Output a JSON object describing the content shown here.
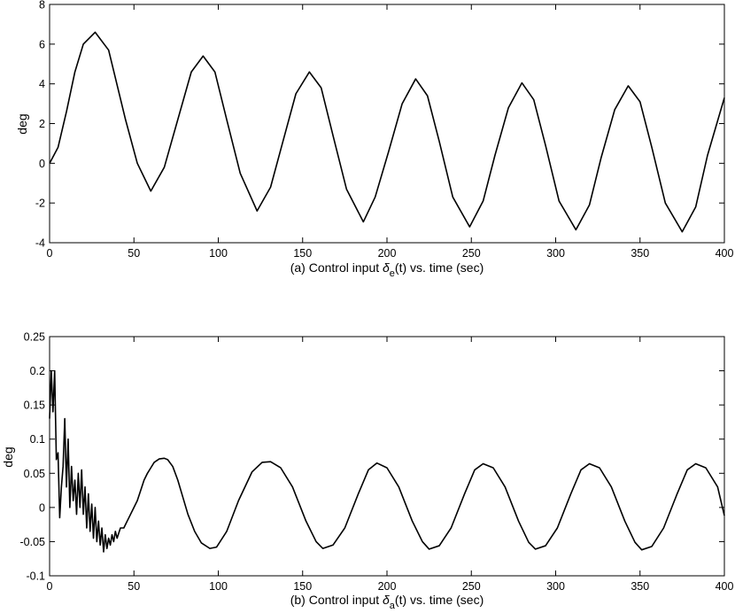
{
  "chart_data": [
    {
      "type": "line",
      "title": "",
      "xlabel": "(a) Control input δe(t) vs. time (sec)",
      "xlabel_parts": {
        "prefix": "(a) Control input ",
        "symbol": "δ",
        "subscript": "e",
        "suffix": "(t) vs. time (sec)"
      },
      "ylabel": "deg",
      "xlim": [
        0,
        400
      ],
      "ylim": [
        -4,
        8
      ],
      "x_ticks": [
        0,
        50,
        100,
        150,
        200,
        250,
        300,
        350,
        400
      ],
      "y_ticks": [
        -4,
        -2,
        0,
        2,
        4,
        6,
        8
      ],
      "grid": false,
      "series": [
        {
          "x": [
            0,
            5,
            10,
            15,
            20,
            27,
            35,
            45,
            52,
            60,
            68,
            76,
            84,
            91,
            98,
            105,
            113,
            123,
            131,
            138,
            146,
            154,
            161,
            168,
            176,
            186,
            193,
            201,
            209,
            217,
            224,
            231,
            239,
            249,
            257,
            264,
            272,
            280,
            287,
            294,
            302,
            312,
            320,
            327,
            335,
            343,
            350,
            357,
            365,
            375,
            383,
            390,
            400
          ],
          "y": [
            0.0,
            0.8,
            2.6,
            4.6,
            6.0,
            6.6,
            5.7,
            2.2,
            0.0,
            -1.4,
            -0.2,
            2.2,
            4.6,
            5.4,
            4.6,
            2.2,
            -0.5,
            -2.4,
            -1.2,
            1.0,
            3.5,
            4.6,
            3.8,
            1.4,
            -1.3,
            -2.95,
            -1.7,
            0.6,
            3.0,
            4.25,
            3.4,
            1.1,
            -1.7,
            -3.2,
            -1.9,
            0.4,
            2.8,
            4.05,
            3.2,
            0.9,
            -1.9,
            -3.35,
            -2.1,
            0.3,
            2.7,
            3.9,
            3.1,
            0.8,
            -2.0,
            -3.45,
            -2.2,
            0.4,
            3.3
          ]
        }
      ]
    },
    {
      "type": "line",
      "title": "",
      "xlabel": "(b) Control input δa(t) vs. time (sec)",
      "xlabel_parts": {
        "prefix": "(b) Control input ",
        "symbol": "δ",
        "subscript": "a",
        "suffix": "(t) vs. time (sec)"
      },
      "ylabel": "deg",
      "xlim": [
        0,
        400
      ],
      "ylim": [
        -0.1,
        0.25
      ],
      "x_ticks": [
        0,
        50,
        100,
        150,
        200,
        250,
        300,
        350,
        400
      ],
      "y_ticks": [
        -0.1,
        -0.05,
        0,
        0.05,
        0.1,
        0.15,
        0.2,
        0.25
      ],
      "y_tick_labels": [
        "-0.1",
        "-0.05",
        "0",
        "0.05",
        "0.1",
        "0.15",
        "0.2",
        "0.25"
      ],
      "grid": false,
      "series": [
        {
          "x": [
            0,
            1,
            2,
            3,
            4,
            5,
            6,
            7,
            8,
            9,
            10,
            11,
            12,
            13,
            14,
            15,
            16,
            17,
            18,
            19,
            20,
            21,
            22,
            23,
            24,
            25,
            26,
            27,
            28,
            29,
            30,
            31,
            32,
            33,
            34,
            35,
            36,
            37,
            38,
            39,
            40,
            42,
            44,
            46,
            48,
            50,
            52,
            54,
            56,
            58,
            60,
            62,
            65,
            68,
            70,
            73,
            76,
            79,
            82,
            86,
            90,
            95,
            99,
            105,
            112,
            120,
            126,
            131,
            137,
            144,
            152,
            158,
            162,
            168,
            175,
            183,
            189,
            194,
            200,
            207,
            215,
            221,
            225,
            231,
            238,
            246,
            252,
            257,
            263,
            270,
            278,
            284,
            288,
            294,
            301,
            309,
            315,
            320,
            326,
            333,
            341,
            347,
            351,
            357,
            364,
            372,
            378,
            383,
            389,
            396,
            400
          ],
          "y": [
            0.13,
            0.2,
            0.14,
            0.2,
            0.07,
            0.08,
            -0.015,
            0.03,
            0.06,
            0.13,
            0.03,
            0.1,
            0.0,
            0.06,
            0.01,
            0.04,
            -0.01,
            0.05,
            0.0,
            0.055,
            -0.01,
            0.03,
            -0.03,
            0.02,
            -0.035,
            0.005,
            -0.045,
            0.0,
            -0.05,
            -0.02,
            -0.055,
            -0.03,
            -0.065,
            -0.04,
            -0.06,
            -0.045,
            -0.055,
            -0.04,
            -0.05,
            -0.035,
            -0.045,
            -0.03,
            -0.03,
            -0.02,
            -0.01,
            0.0,
            0.01,
            0.025,
            0.04,
            0.05,
            0.058,
            0.066,
            0.071,
            0.072,
            0.07,
            0.06,
            0.04,
            0.015,
            -0.01,
            -0.035,
            -0.052,
            -0.06,
            -0.058,
            -0.035,
            0.01,
            0.052,
            0.066,
            0.067,
            0.058,
            0.03,
            -0.02,
            -0.05,
            -0.06,
            -0.055,
            -0.03,
            0.02,
            0.055,
            0.065,
            0.058,
            0.03,
            -0.02,
            -0.05,
            -0.061,
            -0.056,
            -0.03,
            0.02,
            0.055,
            0.064,
            0.058,
            0.03,
            -0.02,
            -0.051,
            -0.061,
            -0.056,
            -0.03,
            0.02,
            0.055,
            0.064,
            0.058,
            0.03,
            -0.02,
            -0.051,
            -0.062,
            -0.057,
            -0.03,
            0.02,
            0.055,
            0.064,
            0.058,
            0.03,
            -0.012
          ]
        }
      ]
    }
  ]
}
